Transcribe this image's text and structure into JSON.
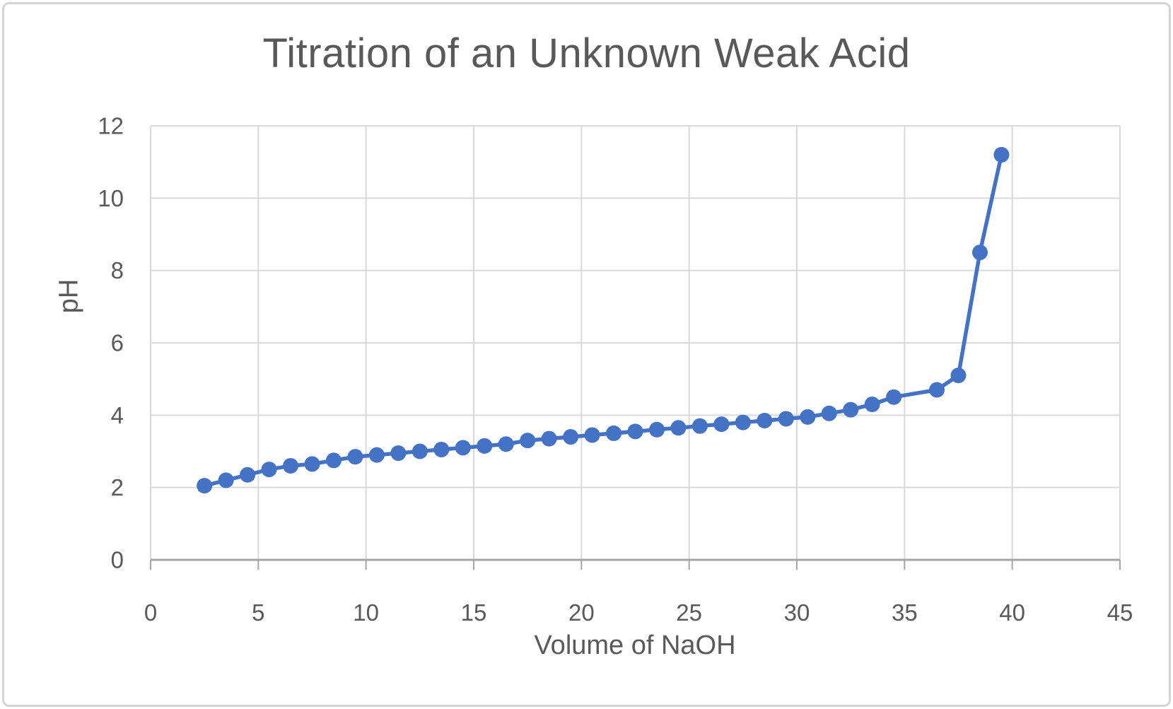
{
  "frame": {
    "background": "#ffffff",
    "border_color": "#d4d4d4"
  },
  "colors": {
    "accent": "#4472C4",
    "gridline": "#d9d9d9",
    "axis_line": "#a6a6a6",
    "text": "#595959"
  },
  "chart_data": {
    "type": "line",
    "title": "Titration of an Unknown Weak Acid",
    "xlabel": "Volume of NaOH",
    "ylabel": "pH",
    "xlim": [
      0,
      45
    ],
    "ylim": [
      0,
      12
    ],
    "x_ticks": [
      0,
      5,
      10,
      15,
      20,
      25,
      30,
      35,
      40,
      45
    ],
    "y_ticks": [
      0,
      2,
      4,
      6,
      8,
      10,
      12
    ],
    "grid": true,
    "legend": false,
    "marker": "circle",
    "series": [
      {
        "name": "pH",
        "color": "#4472C4",
        "x": [
          2.5,
          3.5,
          4.5,
          5.5,
          6.5,
          7.5,
          8.5,
          9.5,
          10.5,
          11.5,
          12.5,
          13.5,
          14.5,
          15.5,
          16.5,
          17.5,
          18.5,
          19.5,
          20.5,
          21.5,
          22.5,
          23.5,
          24.5,
          25.5,
          26.5,
          27.5,
          28.5,
          29.5,
          30.5,
          31.5,
          32.5,
          33.5,
          34.5,
          36.5,
          37.5,
          38.5,
          39.5
        ],
        "y": [
          2.05,
          2.2,
          2.35,
          2.5,
          2.6,
          2.65,
          2.75,
          2.85,
          2.9,
          2.95,
          3.0,
          3.05,
          3.1,
          3.15,
          3.2,
          3.3,
          3.35,
          3.4,
          3.45,
          3.5,
          3.55,
          3.6,
          3.65,
          3.7,
          3.75,
          3.8,
          3.85,
          3.9,
          3.95,
          4.05,
          4.15,
          4.3,
          4.5,
          4.7,
          5.1,
          8.5,
          11.2
        ]
      }
    ]
  }
}
